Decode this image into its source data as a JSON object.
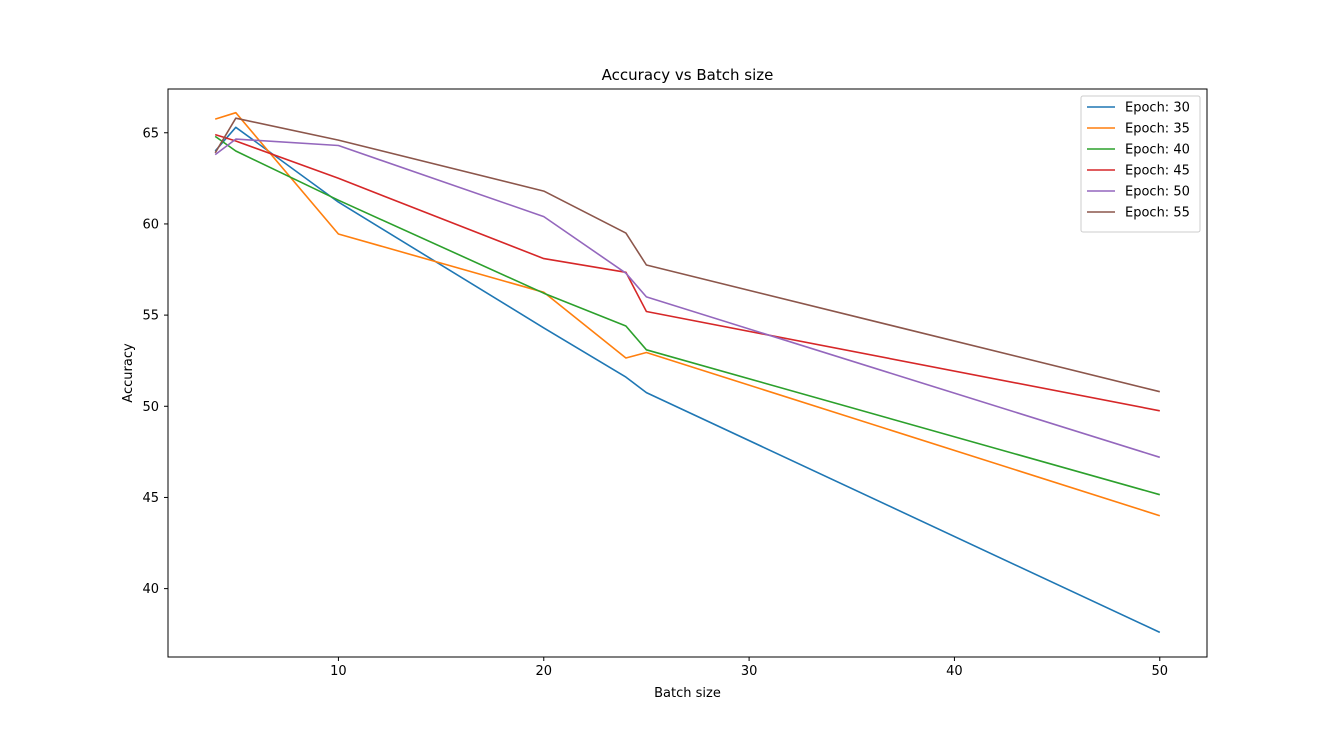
{
  "chart_data": {
    "type": "line",
    "title": "Accuracy vs Batch size",
    "xlabel": "Batch size",
    "ylabel": "Accuracy",
    "x": [
      4,
      5,
      10,
      20,
      24,
      25,
      50
    ],
    "xlim": [
      1.7,
      52.3
    ],
    "ylim": [
      36.25,
      67.4
    ],
    "xticks": [
      10,
      20,
      30,
      40,
      50
    ],
    "yticks": [
      40,
      45,
      50,
      55,
      60,
      65
    ],
    "grid": false,
    "legend_position": "top-right",
    "series": [
      {
        "name": "Epoch: 30",
        "color": "#1f77b4",
        "values": [
          64.0,
          65.3,
          61.2,
          54.3,
          51.6,
          50.75,
          37.6
        ]
      },
      {
        "name": "Epoch: 35",
        "color": "#ff7f0e",
        "values": [
          65.75,
          66.1,
          59.45,
          56.25,
          52.65,
          52.95,
          44.0
        ]
      },
      {
        "name": "Epoch: 40",
        "color": "#2ca02c",
        "values": [
          64.8,
          64.0,
          61.3,
          56.2,
          54.4,
          53.1,
          45.15
        ]
      },
      {
        "name": "Epoch: 45",
        "color": "#d62728",
        "values": [
          64.9,
          64.55,
          62.5,
          58.1,
          57.35,
          55.2,
          49.75
        ]
      },
      {
        "name": "Epoch: 50",
        "color": "#9467bd",
        "values": [
          63.8,
          64.65,
          64.3,
          60.4,
          57.3,
          56.0,
          47.2
        ]
      },
      {
        "name": "Epoch: 55",
        "color": "#8c564b",
        "values": [
          63.9,
          65.8,
          64.6,
          61.8,
          59.5,
          57.75,
          50.8
        ]
      }
    ]
  }
}
